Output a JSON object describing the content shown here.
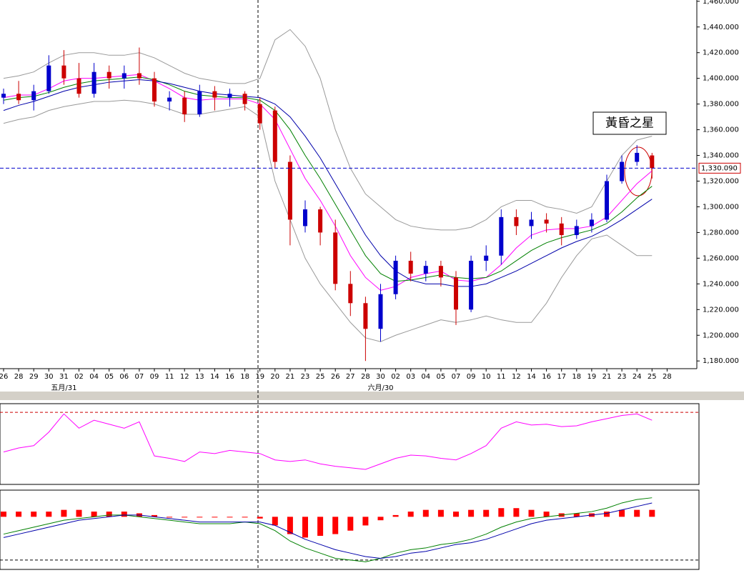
{
  "chart_data": [
    {
      "type": "candlestick",
      "categories": [
        "26",
        "28",
        "29",
        "30",
        "31",
        "02",
        "04",
        "05",
        "06",
        "07",
        "09",
        "11",
        "12",
        "13",
        "14",
        "16",
        "18",
        "19",
        "20",
        "21",
        "23",
        "25",
        "26",
        "27",
        "28",
        "30",
        "02",
        "03",
        "04",
        "05",
        "07",
        "09",
        "10",
        "11",
        "12",
        "14",
        "16",
        "17",
        "18",
        "19",
        "21",
        "23",
        "24",
        "25",
        "28"
      ],
      "month_labels": [
        null,
        null,
        null,
        null,
        "五月/31",
        null,
        null,
        null,
        null,
        null,
        null,
        null,
        null,
        null,
        null,
        null,
        null,
        null,
        null,
        null,
        null,
        null,
        null,
        null,
        null,
        "六月/30",
        null,
        null,
        null,
        null,
        null,
        null,
        null,
        null,
        null,
        null,
        null,
        null,
        null,
        null,
        null,
        null,
        null,
        null,
        null
      ],
      "candles": [
        {
          "open": 1385,
          "high": 1392,
          "low": 1380,
          "close": 1388
        },
        {
          "open": 1388,
          "high": 1398,
          "low": 1380,
          "close": 1383
        },
        {
          "open": 1383,
          "high": 1395,
          "low": 1375,
          "close": 1390
        },
        {
          "open": 1390,
          "high": 1418,
          "low": 1388,
          "close": 1410
        },
        {
          "open": 1410,
          "high": 1422,
          "low": 1395,
          "close": 1400
        },
        {
          "open": 1400,
          "high": 1412,
          "low": 1385,
          "close": 1388
        },
        {
          "open": 1388,
          "high": 1412,
          "low": 1385,
          "close": 1405
        },
        {
          "open": 1405,
          "high": 1410,
          "low": 1392,
          "close": 1400
        },
        {
          "open": 1400,
          "high": 1410,
          "low": 1392,
          "close": 1404
        },
        {
          "open": 1404,
          "high": 1424,
          "low": 1395,
          "close": 1400
        },
        {
          "open": 1400,
          "high": 1405,
          "low": 1378,
          "close": 1382
        },
        {
          "open": 1382,
          "high": 1390,
          "low": 1375,
          "close": 1385
        },
        {
          "open": 1385,
          "high": 1390,
          "low": 1366,
          "close": 1372
        },
        {
          "open": 1372,
          "high": 1395,
          "low": 1370,
          "close": 1390
        },
        {
          "open": 1390,
          "high": 1394,
          "low": 1375,
          "close": 1385
        },
        {
          "open": 1385,
          "high": 1392,
          "low": 1378,
          "close": 1388
        },
        {
          "open": 1388,
          "high": 1390,
          "low": 1375,
          "close": 1380
        },
        {
          "open": 1380,
          "high": 1385,
          "low": 1360,
          "close": 1365
        },
        {
          "open": 1375,
          "high": 1378,
          "low": 1330,
          "close": 1335
        },
        {
          "open": 1335,
          "high": 1340,
          "low": 1270,
          "close": 1290
        },
        {
          "open": 1285,
          "high": 1305,
          "low": 1280,
          "close": 1298
        },
        {
          "open": 1298,
          "high": 1300,
          "low": 1270,
          "close": 1280
        },
        {
          "open": 1280,
          "high": 1290,
          "low": 1235,
          "close": 1240
        },
        {
          "open": 1240,
          "high": 1250,
          "low": 1215,
          "close": 1225
        },
        {
          "open": 1225,
          "high": 1230,
          "low": 1180,
          "close": 1205
        },
        {
          "open": 1205,
          "high": 1240,
          "low": 1195,
          "close": 1232
        },
        {
          "open": 1232,
          "high": 1262,
          "low": 1228,
          "close": 1258
        },
        {
          "open": 1258,
          "high": 1265,
          "low": 1242,
          "close": 1248
        },
        {
          "open": 1248,
          "high": 1258,
          "low": 1242,
          "close": 1254
        },
        {
          "open": 1254,
          "high": 1258,
          "low": 1238,
          "close": 1245
        },
        {
          "open": 1245,
          "high": 1250,
          "low": 1208,
          "close": 1220
        },
        {
          "open": 1220,
          "high": 1262,
          "low": 1218,
          "close": 1258
        },
        {
          "open": 1258,
          "high": 1270,
          "low": 1250,
          "close": 1262
        },
        {
          "open": 1262,
          "high": 1298,
          "low": 1255,
          "close": 1292
        },
        {
          "open": 1292,
          "high": 1298,
          "low": 1278,
          "close": 1285
        },
        {
          "open": 1285,
          "high": 1296,
          "low": 1275,
          "close": 1290
        },
        {
          "open": 1290,
          "high": 1295,
          "low": 1280,
          "close": 1287
        },
        {
          "open": 1287,
          "high": 1292,
          "low": 1270,
          "close": 1278
        },
        {
          "open": 1278,
          "high": 1290,
          "low": 1275,
          "close": 1285
        },
        {
          "open": 1285,
          "high": 1295,
          "low": 1280,
          "close": 1290
        },
        {
          "open": 1290,
          "high": 1325,
          "low": 1288,
          "close": 1320
        },
        {
          "open": 1320,
          "high": 1340,
          "low": 1318,
          "close": 1335
        },
        {
          "open": 1335,
          "high": 1348,
          "low": 1332,
          "close": 1342
        },
        {
          "open": 1340,
          "high": 1342,
          "low": 1322,
          "close": 1330.09
        },
        null
      ],
      "up_color": "#0000cc",
      "down_color": "#cc0000",
      "last_price_label": "1,330.090",
      "series": [
        {
          "color": "#ff00ff",
          "values": [
            1385,
            1387,
            1387,
            1392,
            1398,
            1400,
            1400,
            1401,
            1402,
            1403,
            1398,
            1392,
            1385,
            1383,
            1384,
            1384,
            1384,
            1380,
            1368,
            1345,
            1322,
            1305,
            1285,
            1262,
            1245,
            1235,
            1238,
            1245,
            1248,
            1250,
            1243,
            1242,
            1245,
            1255,
            1268,
            1278,
            1282,
            1283,
            1283,
            1285,
            1292,
            1305,
            1318,
            1328,
            null
          ]
        },
        {
          "color": "#008000",
          "values": [
            1383,
            1385,
            1386,
            1389,
            1393,
            1396,
            1398,
            1399,
            1400,
            1401,
            1399,
            1395,
            1390,
            1387,
            1386,
            1385,
            1385,
            1383,
            1375,
            1360,
            1340,
            1322,
            1302,
            1282,
            1262,
            1248,
            1242,
            1243,
            1245,
            1247,
            1245,
            1244,
            1245,
            1250,
            1258,
            1266,
            1272,
            1276,
            1279,
            1282,
            1287,
            1296,
            1307,
            1316,
            null
          ]
        },
        {
          "color": "#0000aa",
          "values": [
            1375,
            1379,
            1382,
            1386,
            1390,
            1393,
            1395,
            1397,
            1398,
            1399,
            1398,
            1396,
            1393,
            1390,
            1388,
            1387,
            1386,
            1385,
            1380,
            1370,
            1355,
            1338,
            1318,
            1298,
            1278,
            1262,
            1250,
            1243,
            1240,
            1240,
            1238,
            1238,
            1240,
            1245,
            1250,
            1256,
            1262,
            1268,
            1273,
            1277,
            1283,
            1290,
            1298,
            1306,
            null
          ]
        },
        {
          "color": "#999999",
          "values": [
            1400,
            1402,
            1405,
            1412,
            1418,
            1420,
            1420,
            1418,
            1418,
            1420,
            1416,
            1410,
            1404,
            1400,
            1398,
            1396,
            1396,
            1400,
            1430,
            1438,
            1425,
            1400,
            1360,
            1330,
            1310,
            1300,
            1290,
            1285,
            1283,
            1282,
            1282,
            1284,
            1290,
            1300,
            1305,
            1305,
            1300,
            1298,
            1295,
            1300,
            1320,
            1340,
            1352,
            1355,
            null
          ]
        },
        {
          "color": "#999999",
          "values": [
            1365,
            1368,
            1370,
            1375,
            1378,
            1380,
            1382,
            1382,
            1383,
            1382,
            1380,
            1376,
            1372,
            1372,
            1374,
            1376,
            1378,
            1370,
            1320,
            1290,
            1260,
            1240,
            1225,
            1210,
            1198,
            1195,
            1200,
            1204,
            1208,
            1212,
            1210,
            1212,
            1215,
            1212,
            1210,
            1210,
            1225,
            1245,
            1262,
            1275,
            1278,
            1270,
            1262,
            1262,
            null
          ]
        }
      ],
      "ylim": [
        1174,
        1461
      ],
      "yticks": [
        {
          "value": 1460,
          "label": "1,460.000"
        },
        {
          "value": 1440,
          "label": "1,440.000"
        },
        {
          "value": 1420,
          "label": "1,420.000"
        },
        {
          "value": 1400,
          "label": "1,400.000"
        },
        {
          "value": 1380,
          "label": "1,380.000"
        },
        {
          "value": 1360,
          "label": "1,360.000"
        },
        {
          "value": 1340,
          "label": "1,340.000"
        },
        {
          "value": 1320,
          "label": "1,320.000"
        },
        {
          "value": 1300,
          "label": "1,300.000"
        },
        {
          "value": 1280,
          "label": "1,280.000"
        },
        {
          "value": 1260,
          "label": "1,260.000"
        },
        {
          "value": 1240,
          "label": "1,240.000"
        },
        {
          "value": 1220,
          "label": "1,220.000"
        },
        {
          "value": 1200,
          "label": "1,200.000"
        },
        {
          "value": 1180,
          "label": "1,180.000"
        }
      ],
      "annotation": "黃昏之星"
    },
    {
      "type": "line",
      "ylim": [
        0,
        100
      ],
      "reference_line": 90,
      "color": "#ff00ff",
      "values": [
        40,
        45,
        48,
        65,
        88,
        70,
        80,
        75,
        70,
        78,
        35,
        32,
        28,
        40,
        38,
        42,
        40,
        38,
        30,
        28,
        30,
        25,
        22,
        20,
        18,
        25,
        32,
        36,
        35,
        32,
        30,
        38,
        48,
        70,
        78,
        74,
        75,
        72,
        73,
        78,
        82,
        86,
        88,
        80,
        null
      ]
    },
    {
      "type": "macd",
      "ylim": [
        -30,
        15
      ],
      "reference_line": -25,
      "bar_color": "#ff0000",
      "values": [
        3,
        3,
        3,
        3,
        4,
        4,
        3,
        3,
        3,
        2,
        1,
        0,
        0,
        0,
        0,
        0,
        0,
        -1,
        -5,
        -10,
        -12,
        -11,
        -10,
        -8,
        -5,
        -2,
        1,
        3,
        4,
        4,
        3,
        4,
        4,
        5,
        5,
        4,
        3,
        2,
        2,
        2,
        3,
        4,
        4,
        4,
        null
      ],
      "series": [
        {
          "color": "#008000",
          "values": [
            -10,
            -8,
            -6,
            -4,
            -2,
            -1,
            0,
            1,
            1,
            0,
            -1,
            -2,
            -3,
            -4,
            -4,
            -4,
            -3,
            -4,
            -8,
            -14,
            -18,
            -21,
            -24,
            -25,
            -26,
            -24,
            -21,
            -19,
            -18,
            -16,
            -15,
            -13,
            -10,
            -6,
            -3,
            -1,
            0,
            1,
            2,
            3,
            5,
            8,
            10,
            11,
            null
          ]
        },
        {
          "color": "#0000aa",
          "values": [
            -12,
            -10,
            -8,
            -6,
            -4,
            -2,
            -1,
            0,
            1,
            1,
            0,
            -1,
            -2,
            -3,
            -3,
            -3,
            -3,
            -3,
            -5,
            -9,
            -13,
            -16,
            -19,
            -21,
            -23,
            -24,
            -23,
            -21,
            -20,
            -18,
            -16,
            -15,
            -13,
            -10,
            -7,
            -4,
            -2,
            -1,
            0,
            1,
            2,
            4,
            6,
            8,
            null
          ]
        }
      ]
    }
  ]
}
